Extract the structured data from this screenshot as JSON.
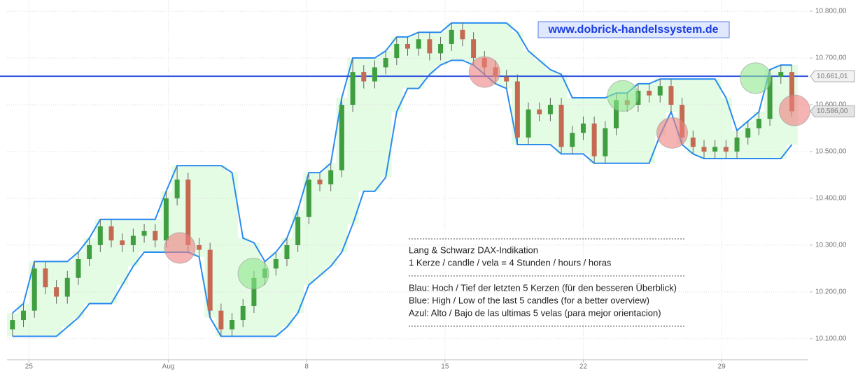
{
  "chart_data": {
    "type": "candlestick",
    "watermark": "www.dobrick-handelssystem.de",
    "annotations": [
      "Lang & Schwarz DAX-Indikation",
      "1 Kerze / candle / vela = 4 Stunden / hours / horas",
      "Blau: Hoch / Tief der letzten 5 Kerzen (für den besseren Überblick)",
      "Blue: High / Low of the last 5 candles (for a better overview)",
      "Azul: Alto / Bajo de las ultimas 5 velas (para mejor orientacion)"
    ],
    "xlim": [
      -0.5,
      72.5
    ],
    "xticks": [
      {
        "value": 1.5,
        "label": "25"
      },
      {
        "value": 14.2,
        "label": "Aug"
      },
      {
        "value": 26.8,
        "label": "8"
      },
      {
        "value": 39.4,
        "label": "15"
      },
      {
        "value": 52,
        "label": "22"
      },
      {
        "value": 64.6,
        "label": "29"
      }
    ],
    "ylim": [
      10055,
      10824
    ],
    "yticks": [
      {
        "value": 10100,
        "label": "10.100,00"
      },
      {
        "value": 10200,
        "label": "10.200,00"
      },
      {
        "value": 10300,
        "label": "10.300,00"
      },
      {
        "value": 10400,
        "label": "10.400,00"
      },
      {
        "value": 10500,
        "label": "10.500,00"
      },
      {
        "value": 10600,
        "label": "10.600,00"
      },
      {
        "value": 10700,
        "label": "10.700,00"
      },
      {
        "value": 10800,
        "label": "10.800,00"
      }
    ],
    "grid": true,
    "up_color": "#3f9e3f",
    "down_color": "#c46a52",
    "band_color": "#2a8cf0",
    "band_fill": "#e4fbe4",
    "open": [
      10120,
      10140,
      10160,
      10250,
      10210,
      10190,
      10230,
      10270,
      10300,
      10340,
      10310,
      10300,
      10320,
      10330,
      10310,
      10400,
      10440,
      10300,
      10290,
      10160,
      10120,
      10140,
      10170,
      10230,
      10250,
      10270,
      10300,
      10360,
      10440,
      10430,
      10460,
      10600,
      10670,
      10650,
      10680,
      10700,
      10730,
      10720,
      10740,
      10710,
      10730,
      10760,
      10740,
      10700,
      10680,
      10660,
      10650,
      10530,
      10590,
      10580,
      10600,
      10510,
      10540,
      10560,
      10490,
      10550,
      10610,
      10600,
      10630,
      10620,
      10640,
      10600,
      10530,
      10510,
      10500,
      10510,
      10500,
      10530,
      10550,
      10570,
      10660,
      10670
    ],
    "high": [
      10155,
      10175,
      10265,
      10265,
      10225,
      10245,
      10285,
      10315,
      10355,
      10355,
      10325,
      10335,
      10345,
      10345,
      10415,
      10470,
      10455,
      10315,
      10305,
      10175,
      10155,
      10185,
      10245,
      10265,
      10285,
      10315,
      10375,
      10455,
      10455,
      10475,
      10615,
      10700,
      10685,
      10695,
      10715,
      10745,
      10745,
      10755,
      10755,
      10745,
      10775,
      10775,
      10755,
      10715,
      10695,
      10675,
      10665,
      10605,
      10605,
      10615,
      10615,
      10555,
      10575,
      10575,
      10565,
      10625,
      10625,
      10645,
      10645,
      10655,
      10655,
      10615,
      10545,
      10525,
      10525,
      10525,
      10545,
      10565,
      10585,
      10675,
      10685,
      10685
    ],
    "low": [
      10105,
      10125,
      10145,
      10195,
      10175,
      10175,
      10215,
      10255,
      10285,
      10295,
      10285,
      10285,
      10305,
      10295,
      10295,
      10385,
      10285,
      10275,
      10145,
      10105,
      10105,
      10125,
      10155,
      10215,
      10235,
      10255,
      10285,
      10345,
      10415,
      10415,
      10445,
      10585,
      10635,
      10635,
      10665,
      10685,
      10705,
      10705,
      10695,
      10695,
      10715,
      10725,
      10685,
      10665,
      10645,
      10635,
      10515,
      10515,
      10565,
      10565,
      10495,
      10495,
      10525,
      10475,
      10475,
      10535,
      10585,
      10585,
      10605,
      10605,
      10585,
      10515,
      10495,
      10485,
      10485,
      10485,
      10485,
      10515,
      10535,
      10555,
      10645,
      10575
    ],
    "close": [
      10140,
      10160,
      10250,
      10210,
      10190,
      10230,
      10270,
      10300,
      10340,
      10310,
      10300,
      10320,
      10330,
      10310,
      10400,
      10440,
      10300,
      10290,
      10160,
      10120,
      10140,
      10170,
      10230,
      10250,
      10270,
      10300,
      10360,
      10440,
      10430,
      10460,
      10600,
      10670,
      10650,
      10680,
      10700,
      10730,
      10720,
      10740,
      10710,
      10730,
      10760,
      10740,
      10700,
      10680,
      10660,
      10650,
      10530,
      10590,
      10580,
      10600,
      10510,
      10540,
      10560,
      10490,
      10550,
      10610,
      10600,
      10630,
      10620,
      10640,
      10600,
      10530,
      10510,
      10500,
      10510,
      10500,
      10530,
      10550,
      10570,
      10660,
      10670,
      10586
    ],
    "band_upper": [
      10155,
      10175,
      10265,
      10265,
      10265,
      10265,
      10285,
      10315,
      10355,
      10355,
      10355,
      10355,
      10355,
      10355,
      10415,
      10470,
      10470,
      10470,
      10470,
      10470,
      10455,
      10315,
      10305,
      10265,
      10285,
      10315,
      10375,
      10455,
      10455,
      10475,
      10615,
      10700,
      10700,
      10700,
      10715,
      10745,
      10745,
      10755,
      10755,
      10755,
      10775,
      10775,
      10775,
      10775,
      10775,
      10775,
      10755,
      10715,
      10695,
      10675,
      10665,
      10615,
      10615,
      10615,
      10615,
      10625,
      10625,
      10645,
      10645,
      10655,
      10655,
      10655,
      10655,
      10655,
      10655,
      10615,
      10545,
      10565,
      10585,
      10675,
      10685,
      10685
    ],
    "band_lower": [
      10105,
      10105,
      10105,
      10105,
      10105,
      10125,
      10145,
      10175,
      10175,
      10175,
      10215,
      10255,
      10285,
      10285,
      10285,
      10285,
      10285,
      10275,
      10145,
      10105,
      10105,
      10105,
      10105,
      10105,
      10105,
      10125,
      10155,
      10215,
      10235,
      10255,
      10285,
      10345,
      10415,
      10415,
      10445,
      10585,
      10635,
      10635,
      10665,
      10685,
      10695,
      10695,
      10685,
      10665,
      10645,
      10635,
      10515,
      10515,
      10515,
      10515,
      10495,
      10495,
      10495,
      10475,
      10475,
      10475,
      10475,
      10475,
      10475,
      10535,
      10585,
      10515,
      10495,
      10485,
      10485,
      10485,
      10485,
      10485,
      10485,
      10485,
      10485,
      10515
    ],
    "hline": {
      "value": 10661.01,
      "label": "10.661,01",
      "color": "#2f55e0"
    },
    "last_price": {
      "value": 10586,
      "label": "10.586,00"
    },
    "signals": [
      {
        "x": 15.25,
        "y": 10294,
        "color": "#f08080"
      },
      {
        "x": 21.95,
        "y": 10239,
        "color": "#90e890"
      },
      {
        "x": 43,
        "y": 10670,
        "color": "#f08080"
      },
      {
        "x": 55.6,
        "y": 10619,
        "color": "#90e890"
      },
      {
        "x": 60.1,
        "y": 10540,
        "color": "#f08080"
      },
      {
        "x": 67.7,
        "y": 10657,
        "color": "#90e890"
      },
      {
        "x": 71.25,
        "y": 10588,
        "color": "#f08080"
      }
    ]
  }
}
